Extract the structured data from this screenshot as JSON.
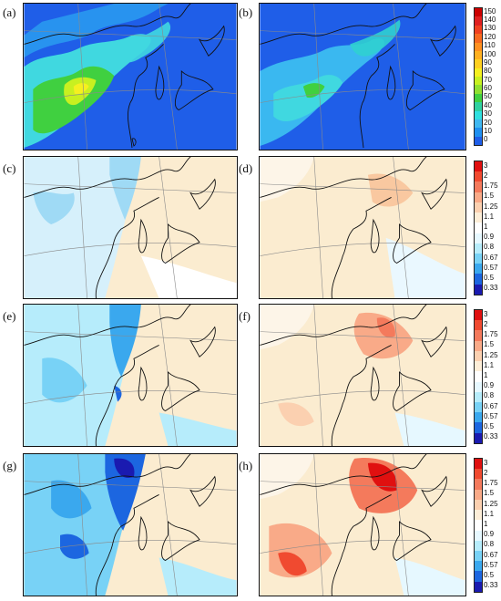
{
  "panels": [
    {
      "id": "a",
      "label": "(a)",
      "map_type": "concentration"
    },
    {
      "id": "b",
      "label": "(b)",
      "map_type": "concentration"
    },
    {
      "id": "c",
      "label": "(c)",
      "map_type": "ratio"
    },
    {
      "id": "d",
      "label": "(d)",
      "map_type": "ratio"
    },
    {
      "id": "e",
      "label": "(e)",
      "map_type": "ratio"
    },
    {
      "id": "f",
      "label": "(f)",
      "map_type": "ratio"
    },
    {
      "id": "g",
      "label": "(g)",
      "map_type": "ratio"
    },
    {
      "id": "h",
      "label": "(h)",
      "map_type": "ratio"
    }
  ],
  "colorbar_concentration": {
    "ticks": [
      "150",
      "140",
      "130",
      "120",
      "110",
      "100",
      "90",
      "80",
      "70",
      "60",
      "50",
      "40",
      "30",
      "20",
      "10",
      "0"
    ],
    "colors": [
      "#cc0000",
      "#e02020",
      "#f04020",
      "#f86a20",
      "#ff9020",
      "#ffb020",
      "#ffd020",
      "#f5f020",
      "#c8f020",
      "#90e030",
      "#40d040",
      "#30d0a0",
      "#30e0e0",
      "#40b8f0",
      "#2090f0",
      "#1f5ee8"
    ]
  },
  "colorbar_ratio": {
    "ticks": [
      "3",
      "2",
      "1.75",
      "1.5",
      "1.25",
      "1.1",
      "1",
      "0.9",
      "0.8",
      "0.67",
      "0.57",
      "0.5",
      "0.33"
    ],
    "colors": [
      "#e01010",
      "#f04a30",
      "#f47a5c",
      "#f9aa88",
      "#fbd0b0",
      "#fdeed8",
      "#ffffff",
      "#e6f8ff",
      "#b6ecfb",
      "#78d2f6",
      "#3aa8ee",
      "#1c66e0",
      "#1a1ab0"
    ]
  },
  "palette": {
    "background_blue": "#1f5ee8",
    "land_cream": "#fbecd0",
    "coast": "#111111",
    "grid": "#8a8a8a"
  }
}
